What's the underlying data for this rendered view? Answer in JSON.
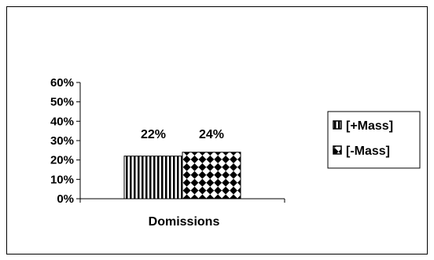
{
  "chart_data": {
    "type": "bar",
    "categories": [
      "Domissions"
    ],
    "series": [
      {
        "name": "[+Mass]",
        "values": [
          22
        ],
        "pattern": "vertical-stripes"
      },
      {
        "name": "[-Mass]",
        "values": [
          24
        ],
        "pattern": "checkerboard"
      }
    ],
    "data_labels": [
      "22%",
      "24%"
    ],
    "ylim": [
      0,
      60
    ],
    "yticks": [
      "0%",
      "10%",
      "20%",
      "30%",
      "40%",
      "50%",
      "60%"
    ],
    "xlabel": "",
    "ylabel": "",
    "legend": "right",
    "grid": false
  }
}
